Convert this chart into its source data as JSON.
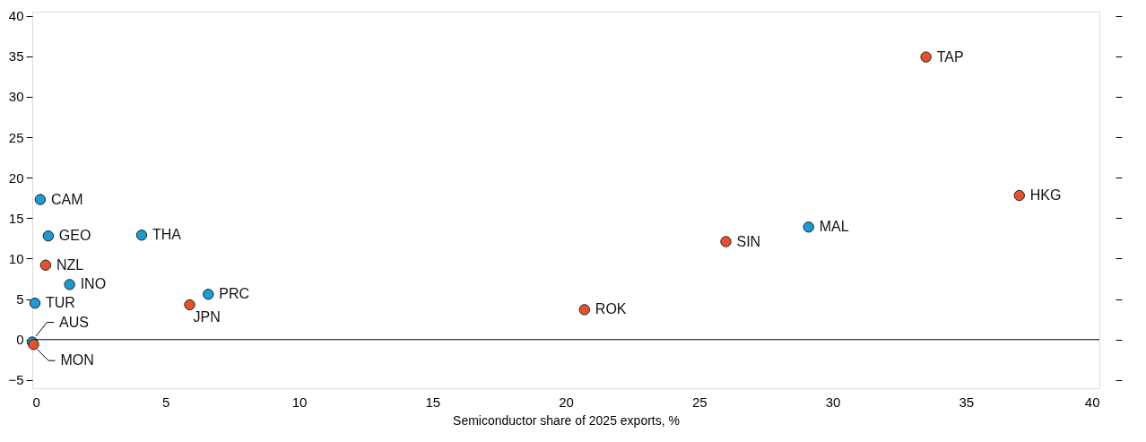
{
  "chart_data": {
    "type": "scatter",
    "xlabel": "Semiconductor share of 2025 exports, %",
    "xlim": [
      0,
      40
    ],
    "xticks": [
      0,
      5,
      10,
      15,
      20,
      25,
      30,
      35,
      40
    ],
    "ylim": [
      -6,
      40.5
    ],
    "yticks": [
      {
        "value": -5,
        "label": "−5"
      },
      0,
      5,
      10,
      15,
      20,
      25,
      30,
      35,
      40
    ],
    "grid": false,
    "marker": "circle",
    "ref_lines": [
      {
        "axis": "y",
        "value": 0,
        "color": "#000000"
      }
    ],
    "series": [
      {
        "color": "#1a9ad6",
        "x": [
          0.3,
          0.6,
          4.1,
          1.4,
          0.1,
          6.6,
          29.1,
          0
        ],
        "values": [
          17.3,
          12.8,
          12.9,
          6.8,
          4.5,
          5.6,
          13.9,
          -0.3
        ]
      },
      {
        "color": "#e8502a",
        "x": [
          33.5,
          37.0,
          26.0,
          20.7,
          5.9,
          0.5,
          0.05
        ],
        "values": [
          34.9,
          17.8,
          12.1,
          3.7,
          4.3,
          9.2,
          -0.6
        ]
      }
    ],
    "annotations": [
      {
        "text": "CAM",
        "x": 0.3,
        "y": 17.3
      },
      {
        "text": "GEO",
        "x": 0.6,
        "y": 12.8
      },
      {
        "text": "THA",
        "x": 4.1,
        "y": 12.9
      },
      {
        "text": "INO",
        "x": 1.4,
        "y": 6.8
      },
      {
        "text": "TUR",
        "x": 0.1,
        "y": 4.5
      },
      {
        "text": "PRC",
        "x": 6.6,
        "y": 5.6
      },
      {
        "text": "MAL",
        "x": 29.1,
        "y": 13.9
      },
      {
        "text": "AUS",
        "x": 0,
        "y": -0.3
      },
      {
        "text": "TAP",
        "x": 33.5,
        "y": 34.9
      },
      {
        "text": "HKG",
        "x": 37.0,
        "y": 17.8
      },
      {
        "text": "SIN",
        "x": 26.0,
        "y": 12.1
      },
      {
        "text": "ROK",
        "x": 20.7,
        "y": 3.7
      },
      {
        "text": "JPN",
        "x": 5.9,
        "y": 4.3
      },
      {
        "text": "NZL",
        "x": 0.5,
        "y": 9.2
      },
      {
        "text": "MON",
        "x": 0.05,
        "y": -0.6
      }
    ]
  }
}
